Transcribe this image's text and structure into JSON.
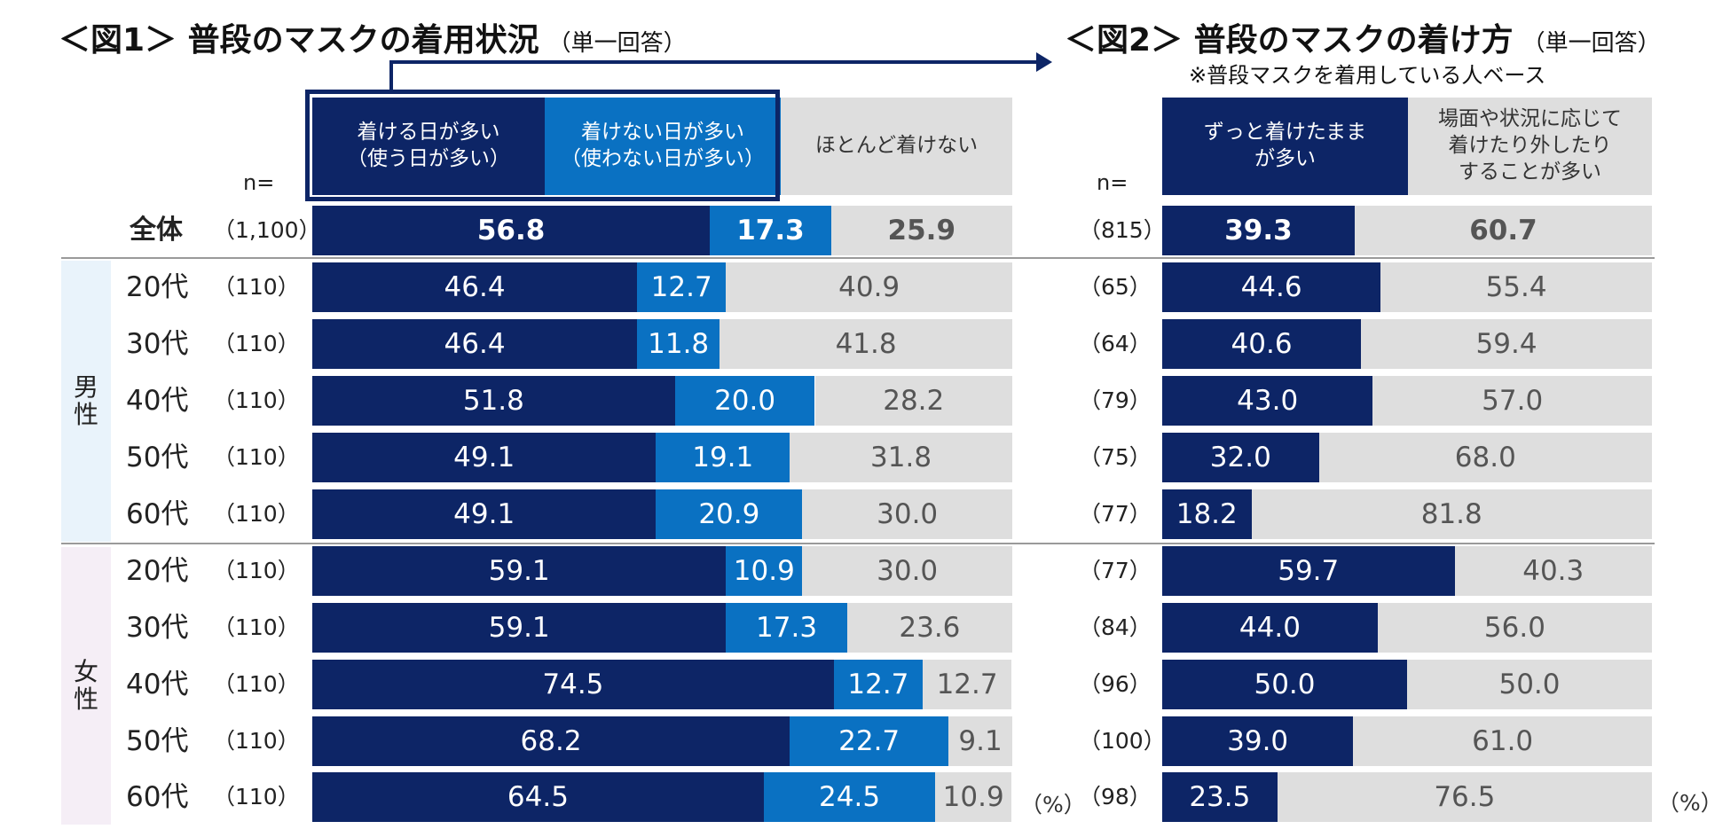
{
  "fig1": {
    "title": "＜図1＞ 普段のマスクの着用状況",
    "subtitle": "（単一回答）",
    "legend": [
      {
        "line1": "着ける日が多い",
        "line2": "（使う日が多い）"
      },
      {
        "line1": "着けない日が多い",
        "line2": "（使わない日が多い）"
      },
      {
        "line1": "ほとんど着けない",
        "line2": ""
      }
    ],
    "n_label": "n=",
    "pct_label": "（%）"
  },
  "fig2": {
    "title": "＜図2＞ 普段のマスクの着け方",
    "subtitle": "（単一回答）",
    "note": "※普段マスクを着用している人ベース",
    "legend": [
      {
        "line1": "ずっと着けたまま",
        "line2": "が多い",
        "line3": ""
      },
      {
        "line1": "場面や状況に応じて",
        "line2": "着けたり外したり",
        "line3": "することが多い"
      }
    ],
    "n_label": "n=",
    "pct_label": "（%）"
  },
  "groups": {
    "male": {
      "c1": "男",
      "c2": "性"
    },
    "female": {
      "c1": "女",
      "c2": "性"
    }
  },
  "colors": {
    "dark": "#0d2566",
    "mid": "#0a71c2",
    "light": "#dedede"
  },
  "chart_data": [
    {
      "type": "bar",
      "stacked": true,
      "orientation": "horizontal",
      "title": "＜図1＞ 普段のマスクの着用状況",
      "categories": [
        "全体",
        "20代",
        "30代",
        "40代",
        "50代",
        "60代",
        "20代",
        "30代",
        "40代",
        "50代",
        "60代"
      ],
      "groups": [
        "",
        "男性",
        "男性",
        "男性",
        "男性",
        "男性",
        "女性",
        "女性",
        "女性",
        "女性",
        "女性"
      ],
      "n": [
        "（1,100）",
        "（110）",
        "（110）",
        "（110）",
        "（110）",
        "（110）",
        "（110）",
        "（110）",
        "（110）",
        "（110）",
        "（110）"
      ],
      "series": [
        {
          "name": "着ける日が多い（使う日が多い）",
          "values": [
            "56.8",
            "46.4",
            "46.4",
            "51.8",
            "49.1",
            "49.1",
            "59.1",
            "59.1",
            "74.5",
            "68.2",
            "64.5"
          ]
        },
        {
          "name": "着けない日が多い（使わない日が多い）",
          "values": [
            "17.3",
            "12.7",
            "11.8",
            "20.0",
            "19.1",
            "20.9",
            "10.9",
            "17.3",
            "12.7",
            "22.7",
            "24.5"
          ]
        },
        {
          "name": "ほとんど着けない",
          "values": [
            "25.9",
            "40.9",
            "41.8",
            "28.2",
            "31.8",
            "30.0",
            "30.0",
            "23.6",
            "12.7",
            "9.1",
            "10.9"
          ]
        }
      ],
      "xlim": [
        0,
        100
      ],
      "unit": "%"
    },
    {
      "type": "bar",
      "stacked": true,
      "orientation": "horizontal",
      "title": "＜図2＞ 普段のマスクの着け方",
      "categories": [
        "全体",
        "20代",
        "30代",
        "40代",
        "50代",
        "60代",
        "20代",
        "30代",
        "40代",
        "50代",
        "60代"
      ],
      "n": [
        "（815）",
        "（65）",
        "（64）",
        "（79）",
        "（75）",
        "（77）",
        "（77）",
        "（84）",
        "（96）",
        "（100）",
        "（98）"
      ],
      "series": [
        {
          "name": "ずっと着けたままが多い",
          "values": [
            "39.3",
            "44.6",
            "40.6",
            "43.0",
            "32.0",
            "18.2",
            "59.7",
            "44.0",
            "50.0",
            "39.0",
            "23.5"
          ]
        },
        {
          "name": "場面や状況に応じて着けたり外したりすることが多い",
          "values": [
            "60.7",
            "55.4",
            "59.4",
            "57.0",
            "68.0",
            "81.8",
            "40.3",
            "56.0",
            "50.0",
            "61.0",
            "76.5"
          ]
        }
      ],
      "xlim": [
        0,
        100
      ],
      "unit": "%"
    }
  ]
}
